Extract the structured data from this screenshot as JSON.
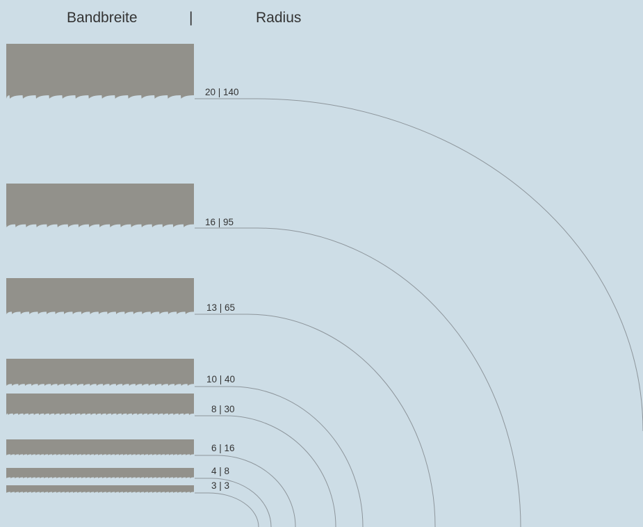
{
  "header": {
    "left": "Bandbreite",
    "separator": "|",
    "right": "Radius"
  },
  "colors": {
    "background": "#cddde6",
    "blade": "#92918b",
    "line": "#8d959b",
    "text": "#333333"
  },
  "blades": [
    {
      "width": 20,
      "radius": 140,
      "label": "20 | 140"
    },
    {
      "width": 16,
      "radius": 95,
      "label": "16 | 95"
    },
    {
      "width": 13,
      "radius": 65,
      "label": "13 | 65"
    },
    {
      "width": 10,
      "radius": 40,
      "label": "10 | 40"
    },
    {
      "width": 8,
      "radius": 30,
      "label": "8 | 30"
    },
    {
      "width": 6,
      "radius": 16,
      "label": "6 | 16"
    },
    {
      "width": 4,
      "radius": 8,
      "label": "4 | 8"
    },
    {
      "width": 3,
      "radius": 3,
      "label": "3 | 3"
    }
  ]
}
